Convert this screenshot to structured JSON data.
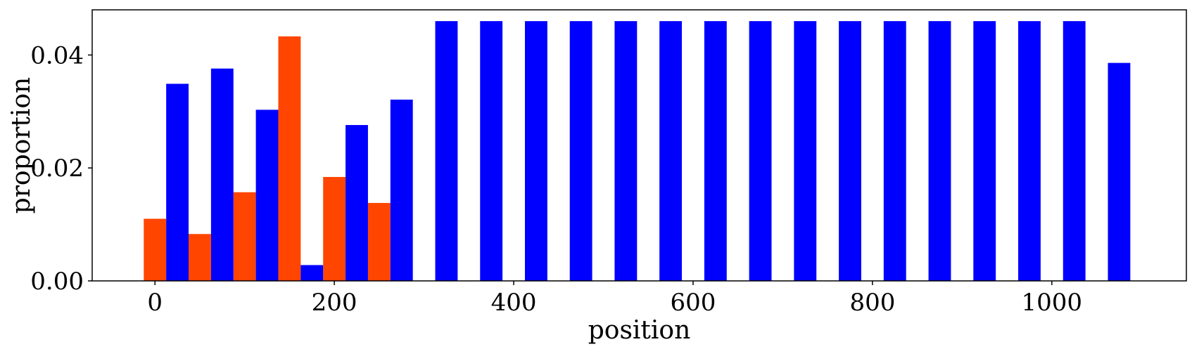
{
  "chart_data": {
    "type": "bar",
    "xlabel": "position",
    "ylabel": "proportion",
    "xlim": [
      -70,
      1150
    ],
    "ylim": [
      0,
      0.048
    ],
    "xticks": [
      0,
      200,
      400,
      600,
      800,
      1000
    ],
    "xtick_labels": [
      "0",
      "200",
      "400",
      "600",
      "800",
      "1000"
    ],
    "yticks": [
      0,
      0.02,
      0.04
    ],
    "ytick_labels": [
      "0.00",
      "0.02",
      "0.04"
    ],
    "bar_width": 25,
    "grid": false,
    "series": [
      {
        "color": "#FF4500",
        "x": [
          0,
          50,
          100,
          150,
          200,
          250
        ],
        "values": [
          0.011,
          0.0083,
          0.0157,
          0.0433,
          0.0184,
          0.0138
        ]
      },
      {
        "color": "#0000FF",
        "x": [
          25,
          75,
          125,
          175,
          225,
          275,
          325,
          375,
          425,
          475,
          525,
          575,
          625,
          675,
          725,
          775,
          825,
          875,
          925,
          975,
          1025,
          1075
        ],
        "values": [
          0.0349,
          0.0376,
          0.0303,
          0.0028,
          0.0276,
          0.0321,
          0.046,
          0.046,
          0.046,
          0.046,
          0.046,
          0.046,
          0.046,
          0.046,
          0.046,
          0.046,
          0.046,
          0.046,
          0.046,
          0.046,
          0.046,
          0.0386
        ]
      }
    ]
  }
}
